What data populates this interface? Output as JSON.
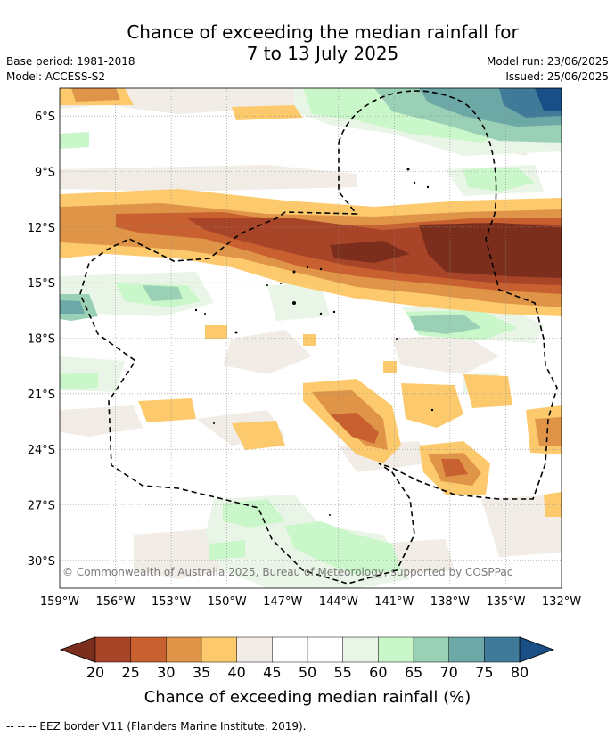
{
  "title": {
    "line1": "Chance of exceeding the median rainfall for",
    "line2": "7 to 13 July 2025"
  },
  "meta": {
    "base_period": "Base period: 1981-2018",
    "model": "Model: ACCESS-S2",
    "model_run": "Model run: 23/06/2025",
    "issued": "Issued: 25/06/2025"
  },
  "map": {
    "lon_ticks": [
      "159°W",
      "156°W",
      "153°W",
      "150°W",
      "147°W",
      "144°W",
      "141°W",
      "138°W",
      "135°W",
      "132°W"
    ],
    "lat_ticks": [
      "6°S",
      "9°S",
      "12°S",
      "15°S",
      "18°S",
      "21°S",
      "24°S",
      "27°S",
      "30°S"
    ],
    "lon_range": [
      -159,
      -132
    ],
    "lat_range": [
      -31.5,
      -4.5
    ],
    "copyright": "© Commonwealth of Australia 2025, Bureau of Meteorology, supported by COSPPac"
  },
  "colorbar": {
    "ticks": [
      "20",
      "25",
      "30",
      "35",
      "40",
      "45",
      "50",
      "55",
      "60",
      "65",
      "70",
      "75",
      "80"
    ],
    "colors": [
      "#7c2e1d",
      "#a84427",
      "#c8612f",
      "#df9448",
      "#fcca6c",
      "#f2ece6",
      "#ffffff",
      "#ffffff",
      "#e9f5e6",
      "#c9f7c9",
      "#9ad1b6",
      "#6ca8a6",
      "#3f7a98",
      "#1a4e86"
    ],
    "label": "Chance of exceeding median rainfall (%)"
  },
  "legend": {
    "eez": "-- -- -- EEZ border V11 (Flanders Marine Institute, 2019)."
  }
}
